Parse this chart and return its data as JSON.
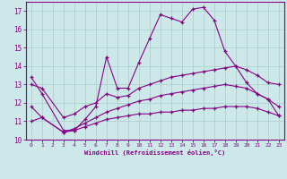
{
  "xlabel": "Windchill (Refroidissement éolien,°C)",
  "background_color": "#cce8e8",
  "grid_color": "#aacccc",
  "line_color": "#880088",
  "xlim": [
    -0.5,
    23.5
  ],
  "ylim": [
    10,
    17.5
  ],
  "xticks": [
    0,
    1,
    2,
    3,
    4,
    5,
    6,
    7,
    8,
    9,
    10,
    11,
    12,
    13,
    14,
    15,
    16,
    17,
    18,
    19,
    20,
    21,
    22,
    23
  ],
  "yticks": [
    10,
    11,
    12,
    13,
    14,
    15,
    16,
    17
  ],
  "series": [
    {
      "x": [
        0,
        1,
        3,
        4,
        5,
        6,
        7,
        8,
        9,
        10,
        11,
        12,
        13,
        14,
        15,
        16,
        17,
        18,
        19,
        20,
        21,
        22,
        23
      ],
      "y": [
        13.4,
        12.5,
        10.5,
        10.5,
        11.1,
        11.8,
        14.5,
        12.8,
        12.8,
        14.2,
        15.5,
        16.8,
        16.6,
        16.4,
        17.1,
        17.2,
        16.5,
        14.8,
        14.0,
        13.1,
        12.5,
        12.2,
        11.3
      ]
    },
    {
      "x": [
        0,
        1,
        3,
        4,
        5,
        6,
        7,
        8,
        9,
        10,
        11,
        12,
        13,
        14,
        15,
        16,
        17,
        18,
        19,
        20,
        21,
        22,
        23
      ],
      "y": [
        13.0,
        12.8,
        11.2,
        11.4,
        11.8,
        12.0,
        12.5,
        12.3,
        12.4,
        12.8,
        13.0,
        13.2,
        13.4,
        13.5,
        13.6,
        13.7,
        13.8,
        13.9,
        14.0,
        13.8,
        13.5,
        13.1,
        13.0
      ]
    },
    {
      "x": [
        0,
        1,
        3,
        4,
        5,
        6,
        7,
        8,
        9,
        10,
        11,
        12,
        13,
        14,
        15,
        16,
        17,
        18,
        19,
        20,
        21,
        22,
        23
      ],
      "y": [
        11.8,
        11.2,
        10.4,
        10.6,
        10.9,
        11.2,
        11.5,
        11.7,
        11.9,
        12.1,
        12.2,
        12.4,
        12.5,
        12.6,
        12.7,
        12.8,
        12.9,
        13.0,
        12.9,
        12.8,
        12.5,
        12.2,
        11.8
      ]
    },
    {
      "x": [
        0,
        1,
        3,
        4,
        5,
        6,
        7,
        8,
        9,
        10,
        11,
        12,
        13,
        14,
        15,
        16,
        17,
        18,
        19,
        20,
        21,
        22,
        23
      ],
      "y": [
        11.0,
        11.2,
        10.4,
        10.5,
        10.7,
        10.9,
        11.1,
        11.2,
        11.3,
        11.4,
        11.4,
        11.5,
        11.5,
        11.6,
        11.6,
        11.7,
        11.7,
        11.8,
        11.8,
        11.8,
        11.7,
        11.5,
        11.3
      ]
    }
  ]
}
